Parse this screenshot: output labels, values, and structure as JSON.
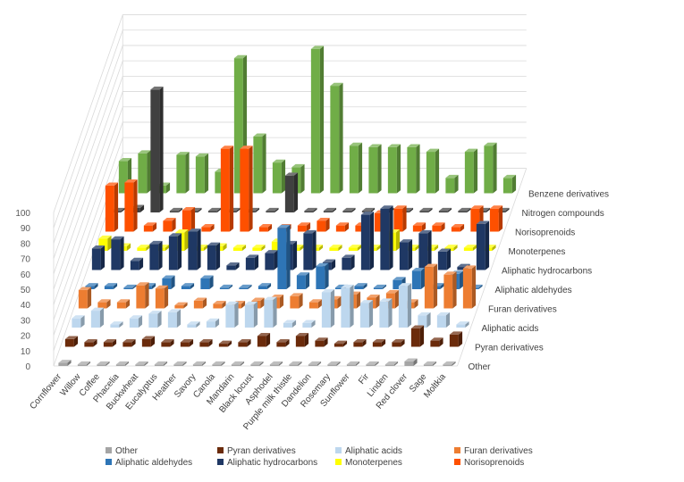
{
  "chart_data": {
    "type": "bar",
    "subtype": "3d-column",
    "title": "",
    "xlabel": "",
    "ylabel": "",
    "ylim": [
      0,
      100
    ],
    "yticks": [
      0,
      10,
      20,
      30,
      40,
      50,
      60,
      70,
      80,
      90,
      100
    ],
    "grid": true,
    "legend_position": "bottom",
    "categories": [
      "Cornflower",
      "Willow",
      "Coffee",
      "Phacelia",
      "Buckwheat",
      "Eucalyptus",
      "Heather",
      "Savory",
      "Canola",
      "Mandarin",
      "Black locust",
      "Asphodel",
      "Purple milk thistle",
      "Dandelion",
      "Rosemary",
      "Sunflower",
      "Fir",
      "Linden",
      "Red clover",
      "Sage",
      "Moltkia"
    ],
    "series": [
      {
        "name": "Other",
        "color": "#a5a5a5",
        "values": [
          2,
          1,
          1,
          1,
          1,
          1,
          1,
          1,
          1,
          1,
          1,
          1,
          1,
          1,
          1,
          1,
          1,
          1,
          3,
          1,
          1
        ]
      },
      {
        "name": "Pyran derivatives",
        "color": "#6b2b0b",
        "values": [
          5,
          3,
          3,
          3,
          5,
          3,
          3,
          3,
          2,
          3,
          7,
          3,
          7,
          4,
          2,
          3,
          3,
          3,
          12,
          4,
          8
        ]
      },
      {
        "name": "Aliphatic acids",
        "color": "#bdd7ee",
        "values": [
          6,
          11,
          2,
          6,
          9,
          10,
          2,
          4,
          15,
          15,
          18,
          3,
          3,
          23,
          26,
          16,
          17,
          27,
          8,
          8,
          2
        ]
      },
      {
        "name": "Furan derivatives",
        "color": "#ed7d31",
        "values": [
          12,
          4,
          4,
          15,
          13,
          2,
          5,
          3,
          3,
          5,
          7,
          8,
          4,
          6,
          9,
          7,
          10,
          4,
          27,
          22,
          26
        ]
      },
      {
        "name": "Aliphatic aldehydes",
        "color": "#2e75b6",
        "values": [
          2,
          2,
          1,
          2,
          7,
          2,
          7,
          1,
          1,
          2,
          40,
          9,
          15,
          1,
          2,
          1,
          6,
          12,
          2,
          10,
          1
        ]
      },
      {
        "name": "Aliphatic hydrocarbons",
        "color": "#1f3864",
        "values": [
          14,
          20,
          6,
          17,
          22,
          25,
          16,
          3,
          8,
          11,
          17,
          24,
          5,
          8,
          36,
          40,
          18,
          24,
          12,
          2,
          30
        ]
      },
      {
        "name": "Monoterpenes",
        "color": "#ffff00",
        "values": [
          8,
          3,
          2,
          2,
          12,
          2,
          3,
          2,
          2,
          6,
          2,
          2,
          2,
          2,
          2,
          12,
          2,
          2,
          2,
          2,
          2
        ]
      },
      {
        "name": "Norisoprenoids",
        "color": "#fe5000",
        "values": [
          30,
          32,
          4,
          7,
          14,
          3,
          54,
          54,
          3,
          3,
          4,
          7,
          4,
          4,
          12,
          15,
          4,
          4,
          3,
          15,
          15
        ]
      },
      {
        "name": "Nitrogen compounds",
        "color": "#404040",
        "values": [
          1,
          3,
          80,
          1,
          1,
          1,
          1,
          1,
          1,
          24,
          1,
          1,
          1,
          1,
          1,
          1,
          1,
          1,
          1,
          1,
          1
        ]
      },
      {
        "name": "Benzene derivatives",
        "color": "#70ad47",
        "values": [
          21,
          26,
          5,
          25,
          24,
          14,
          88,
          37,
          20,
          17,
          94,
          70,
          31,
          30,
          30,
          30,
          27,
          10,
          27,
          31,
          10
        ]
      }
    ]
  }
}
